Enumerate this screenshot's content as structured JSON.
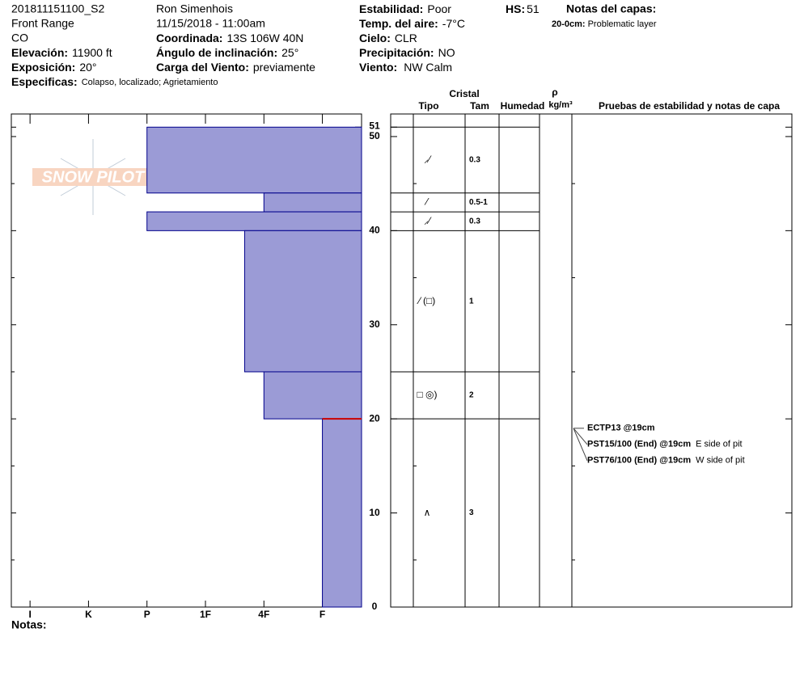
{
  "header": {
    "id": "201811151100_S2",
    "range": "Front Range",
    "state": "CO",
    "elevation": {
      "label": "Elevación:",
      "value": "11900 ft"
    },
    "aspect": {
      "label": "Exposición:",
      "value": "20°"
    },
    "specifics": {
      "label": "Especificas:",
      "value": "Colapso, localizado; Agrietamiento"
    },
    "observer": "Ron Simenhois",
    "datetime": "11/15/2018 - 11:00am",
    "coordinates": {
      "label": "Coordinada:",
      "value": "13S 106W 40N"
    },
    "slope": {
      "label": "Ángulo de inclinación:",
      "value": "25°"
    },
    "wind_loading": {
      "label": "Carga del Viento:",
      "value": "previamente"
    },
    "stability": {
      "label": "Estabilidad:",
      "value": "Poor"
    },
    "air_temp": {
      "label": "Temp. del aire:",
      "value": "-7°C"
    },
    "sky": {
      "label": "Cielo:",
      "value": "CLR"
    },
    "precipitation": {
      "label": "Precipitación:",
      "value": "NO"
    },
    "wind": {
      "label": "Viento:",
      "value": "NW Calm"
    },
    "hs": {
      "label": "HS:",
      "value": "51"
    }
  },
  "layer_notes": {
    "title": "Notas del capas:",
    "items": [
      {
        "range": "20-0cm:",
        "note": "Problematic layer"
      }
    ]
  },
  "logo": "SNOW PILOT",
  "notes_label": "Notas:",
  "chart_data": {
    "type": "snow-profile",
    "color": "#9b9bd6",
    "ylim": [
      0,
      52.4
    ],
    "yticks": [
      0,
      10,
      20,
      30,
      40,
      50,
      51
    ],
    "minor_yticks": [
      5,
      15,
      25,
      35,
      45
    ],
    "xlim": [
      6.32,
      0.33
    ],
    "xticks": [
      {
        "value": 6,
        "label": "I"
      },
      {
        "value": 5,
        "label": "K"
      },
      {
        "value": 4,
        "label": "P"
      },
      {
        "value": 3,
        "label": "1F"
      },
      {
        "value": 2,
        "label": "4F"
      },
      {
        "value": 1,
        "label": "F"
      }
    ],
    "problem_layer_height": 20,
    "problem_color": "#cc0000",
    "table_headers": {
      "crystal": "Cristal",
      "type": "Tipo",
      "size": "Tam",
      "moisture": "Humedad",
      "rho": "ρ",
      "density_unit": "kg/m³",
      "tests": "Pruebas de estabilidad y notas de capa"
    },
    "layers": [
      {
        "top": 51,
        "bottom": 44,
        "hardness": 4,
        "grain": "⸝⁄",
        "size": "0.3"
      },
      {
        "top": 44,
        "bottom": 42,
        "hardness": 2,
        "grain": "⁄",
        "size": "0.5-1"
      },
      {
        "top": 42,
        "bottom": 40,
        "hardness": 4,
        "grain": "⸝⁄",
        "size": "0.3"
      },
      {
        "top": 40,
        "bottom": 25,
        "hardness": 2.33,
        "grain": "⁄ (□)",
        "size": "1"
      },
      {
        "top": 25,
        "bottom": 20,
        "hardness": 2,
        "grain": "□ ◎)",
        "size": "2"
      },
      {
        "top": 20,
        "bottom": 0,
        "hardness": 1,
        "grain": "∧",
        "size": "3"
      }
    ],
    "tests": [
      {
        "depth": 19,
        "name": "ECTP13 @19cm"
      },
      {
        "depth": 19,
        "name": "PST15/100 (End) @19cm",
        "note": "E side of pit"
      },
      {
        "depth": 19,
        "name": "PST76/100 (End) @19cm",
        "note": "W side of pit"
      }
    ]
  }
}
